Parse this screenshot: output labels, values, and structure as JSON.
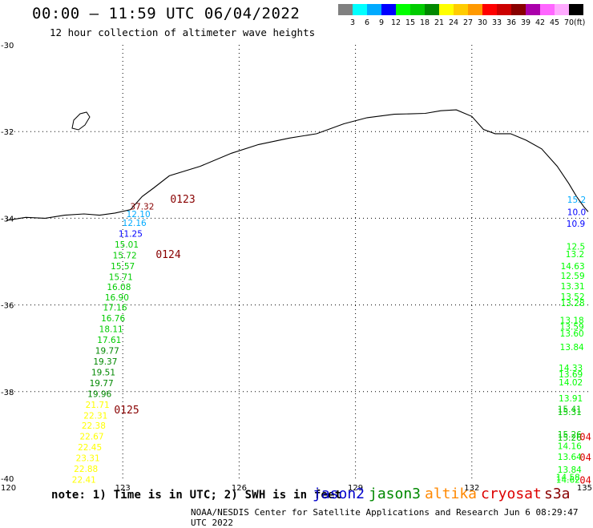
{
  "header": {
    "title": "00:00 – 11:59 UTC 06/04/2022",
    "subtitle": "12 hour collection of altimeter wave heights"
  },
  "legend": {
    "colors": [
      "#808080",
      "#00ffff",
      "#00aaff",
      "#0000ff",
      "#00ff00",
      "#00cc00",
      "#008800",
      "#ffff00",
      "#ffcc00",
      "#ff9900",
      "#ff0000",
      "#cc0000",
      "#880000",
      "#aa00aa",
      "#ff66ff",
      "#ffaaff",
      "#000000"
    ],
    "labels": [
      "3",
      "6",
      "9",
      "12",
      "15",
      "18",
      "21",
      "24",
      "27",
      "30",
      "33",
      "36",
      "39",
      "42",
      "45",
      "70"
    ],
    "unit": "(ft)"
  },
  "axes": {
    "lon_labels": [
      "120",
      "123",
      "126",
      "129",
      "132",
      "135"
    ],
    "lat_labels": [
      "-30",
      "-32",
      "-34",
      "-36",
      "-38",
      "-40"
    ]
  },
  "coastline_lonlat": [
    [
      120.0,
      -34.05
    ],
    [
      120.5,
      -33.98
    ],
    [
      121.0,
      -34.0
    ],
    [
      121.5,
      -33.93
    ],
    [
      122.0,
      -33.9
    ],
    [
      122.4,
      -33.93
    ],
    [
      122.8,
      -33.88
    ],
    [
      123.2,
      -33.8
    ],
    [
      123.5,
      -33.5
    ],
    [
      123.8,
      -33.3
    ],
    [
      124.2,
      -33.02
    ],
    [
      125.0,
      -32.8
    ],
    [
      125.8,
      -32.5
    ],
    [
      126.5,
      -32.3
    ],
    [
      127.3,
      -32.15
    ],
    [
      128.0,
      -32.05
    ],
    [
      128.7,
      -31.82
    ],
    [
      129.3,
      -31.68
    ],
    [
      130.0,
      -31.6
    ],
    [
      130.8,
      -31.58
    ],
    [
      131.2,
      -31.52
    ],
    [
      131.6,
      -31.5
    ],
    [
      132.0,
      -31.65
    ],
    [
      132.3,
      -31.95
    ],
    [
      132.6,
      -32.05
    ],
    [
      133.0,
      -32.05
    ],
    [
      133.4,
      -32.2
    ],
    [
      133.8,
      -32.4
    ],
    [
      134.2,
      -32.8
    ],
    [
      134.5,
      -33.2
    ],
    [
      134.7,
      -33.5
    ],
    [
      134.9,
      -33.75
    ],
    [
      135.0,
      -33.85
    ]
  ],
  "annotations": {
    "bands": [
      "0123",
      "0124",
      "0125"
    ],
    "satellite_labels": [
      "jason2",
      "jason3",
      "altika",
      "cryosat",
      "s3a"
    ],
    "note": "note: 1) Time is in UTC; 2) SWH is in feet",
    "credit": "NOAA/NESDIS Center for Satellite Applications and Research   Jun  6 08:29:47 UTC 2022"
  },
  "track_a": [
    {
      "t": "37.32",
      "lon": 123.5,
      "lat": -33.72,
      "c": "#880000"
    },
    {
      "t": "12.10",
      "lon": 123.4,
      "lat": -33.9,
      "c": "#00aaff"
    },
    {
      "t": "12.16",
      "lon": 123.3,
      "lat": -34.1,
      "c": "#00aaff"
    },
    {
      "t": "11.25",
      "lon": 123.2,
      "lat": -34.35,
      "c": "#0000ff"
    },
    {
      "t": "15.01",
      "lon": 123.1,
      "lat": -34.6,
      "c": "#00cc00"
    },
    {
      "t": "15.72",
      "lon": 123.05,
      "lat": -34.85,
      "c": "#00cc00"
    },
    {
      "t": "15.57",
      "lon": 123.0,
      "lat": -35.1,
      "c": "#00cc00"
    },
    {
      "t": "15.71",
      "lon": 122.95,
      "lat": -35.35,
      "c": "#00cc00"
    },
    {
      "t": "16.08",
      "lon": 122.9,
      "lat": -35.58,
      "c": "#00cc00"
    },
    {
      "t": "16.90",
      "lon": 122.85,
      "lat": -35.82,
      "c": "#00cc00"
    },
    {
      "t": "17.16",
      "lon": 122.8,
      "lat": -36.05,
      "c": "#00cc00"
    },
    {
      "t": "16.76",
      "lon": 122.75,
      "lat": -36.3,
      "c": "#00cc00"
    },
    {
      "t": "18.11",
      "lon": 122.7,
      "lat": -36.55,
      "c": "#00cc00"
    },
    {
      "t": "17.61",
      "lon": 122.65,
      "lat": -36.8,
      "c": "#00cc00"
    },
    {
      "t": "19.77",
      "lon": 122.6,
      "lat": -37.05,
      "c": "#008800"
    },
    {
      "t": "19.37",
      "lon": 122.55,
      "lat": -37.3,
      "c": "#008800"
    },
    {
      "t": "19.51",
      "lon": 122.5,
      "lat": -37.55,
      "c": "#008800"
    },
    {
      "t": "19.77",
      "lon": 122.45,
      "lat": -37.8,
      "c": "#008800"
    },
    {
      "t": "19.96",
      "lon": 122.4,
      "lat": -38.05,
      "c": "#008800"
    },
    {
      "t": "21.71",
      "lon": 122.35,
      "lat": -38.3,
      "c": "#ffff00"
    },
    {
      "t": "22.31",
      "lon": 122.3,
      "lat": -38.55,
      "c": "#ffff00"
    },
    {
      "t": "22.38",
      "lon": 122.25,
      "lat": -38.78,
      "c": "#ffff00"
    },
    {
      "t": "22.67",
      "lon": 122.2,
      "lat": -39.03,
      "c": "#ffff00"
    },
    {
      "t": "22.45",
      "lon": 122.15,
      "lat": -39.28,
      "c": "#ffff00"
    },
    {
      "t": "23.31",
      "lon": 122.1,
      "lat": -39.53,
      "c": "#ffff00"
    },
    {
      "t": "22.88",
      "lon": 122.05,
      "lat": -39.78,
      "c": "#ffff00"
    },
    {
      "t": "22.41",
      "lon": 122.0,
      "lat": -40.03,
      "c": "#ffff00"
    }
  ],
  "track_b": [
    {
      "t": "15.2",
      "lon": 134.7,
      "lat": -33.57,
      "c": "#00aaff"
    },
    {
      "t": "10.0",
      "lon": 134.7,
      "lat": -33.85,
      "c": "#0000ff"
    },
    {
      "t": "10.9",
      "lon": 134.68,
      "lat": -34.12,
      "c": "#0000ff"
    },
    {
      "t": "12.5",
      "lon": 134.68,
      "lat": -34.65,
      "c": "#00ff00"
    },
    {
      "t": "13.2",
      "lon": 134.66,
      "lat": -34.82,
      "c": "#00ff00"
    },
    {
      "t": "14.63",
      "lon": 134.6,
      "lat": -35.1,
      "c": "#00ff00"
    },
    {
      "t": "12.59",
      "lon": 134.6,
      "lat": -35.32,
      "c": "#00ff00"
    },
    {
      "t": "13.31",
      "lon": 134.6,
      "lat": -35.56,
      "c": "#00ff00"
    },
    {
      "t": "13.52",
      "lon": 134.6,
      "lat": -35.8,
      "c": "#00ff00"
    },
    {
      "t": "13.28",
      "lon": 134.6,
      "lat": -35.95,
      "c": "#00ff00"
    },
    {
      "t": "13.18",
      "lon": 134.58,
      "lat": -36.35,
      "c": "#00ff00"
    },
    {
      "t": "13.59",
      "lon": 134.58,
      "lat": -36.5,
      "c": "#00ff00"
    },
    {
      "t": "13.60",
      "lon": 134.58,
      "lat": -36.65,
      "c": "#00ff00"
    },
    {
      "t": "13.84",
      "lon": 134.58,
      "lat": -36.97,
      "c": "#00ff00"
    },
    {
      "t": "14.33",
      "lon": 134.55,
      "lat": -37.45,
      "c": "#00ff00"
    },
    {
      "t": "13.69",
      "lon": 134.55,
      "lat": -37.6,
      "c": "#00ff00"
    },
    {
      "t": "14.02",
      "lon": 134.55,
      "lat": -37.78,
      "c": "#00ff00"
    },
    {
      "t": "13.91",
      "lon": 134.55,
      "lat": -38.15,
      "c": "#00ff00"
    },
    {
      "t": "15.41",
      "lon": 134.52,
      "lat": -38.4,
      "c": "#00cc00"
    },
    {
      "t": "15.31",
      "lon": 134.52,
      "lat": -38.47,
      "c": "#00cc00"
    },
    {
      "t": "15.26",
      "lon": 134.52,
      "lat": -38.98,
      "c": "#00cc00"
    },
    {
      "t": "15.26",
      "lon": 134.52,
      "lat": -39.06,
      "c": "#00cc00"
    },
    {
      "t": "14.16",
      "lon": 134.52,
      "lat": -39.25,
      "c": "#00ff00"
    },
    {
      "t": "13.64",
      "lon": 134.52,
      "lat": -39.5,
      "c": "#00ff00"
    },
    {
      "t": "13.84",
      "lon": 134.52,
      "lat": -39.8,
      "c": "#00ff00"
    },
    {
      "t": "14.58",
      "lon": 134.48,
      "lat": -39.97,
      "c": "#00ff00"
    },
    {
      "t": "14.62",
      "lon": 134.48,
      "lat": -40.03,
      "c": "#00ff00"
    }
  ],
  "red_labels": [
    {
      "t": "04",
      "lon": 134.78,
      "lat": -39.05
    },
    {
      "t": "04",
      "lon": 134.78,
      "lat": -39.52
    },
    {
      "t": "04",
      "lon": 134.78,
      "lat": -40.05
    }
  ]
}
